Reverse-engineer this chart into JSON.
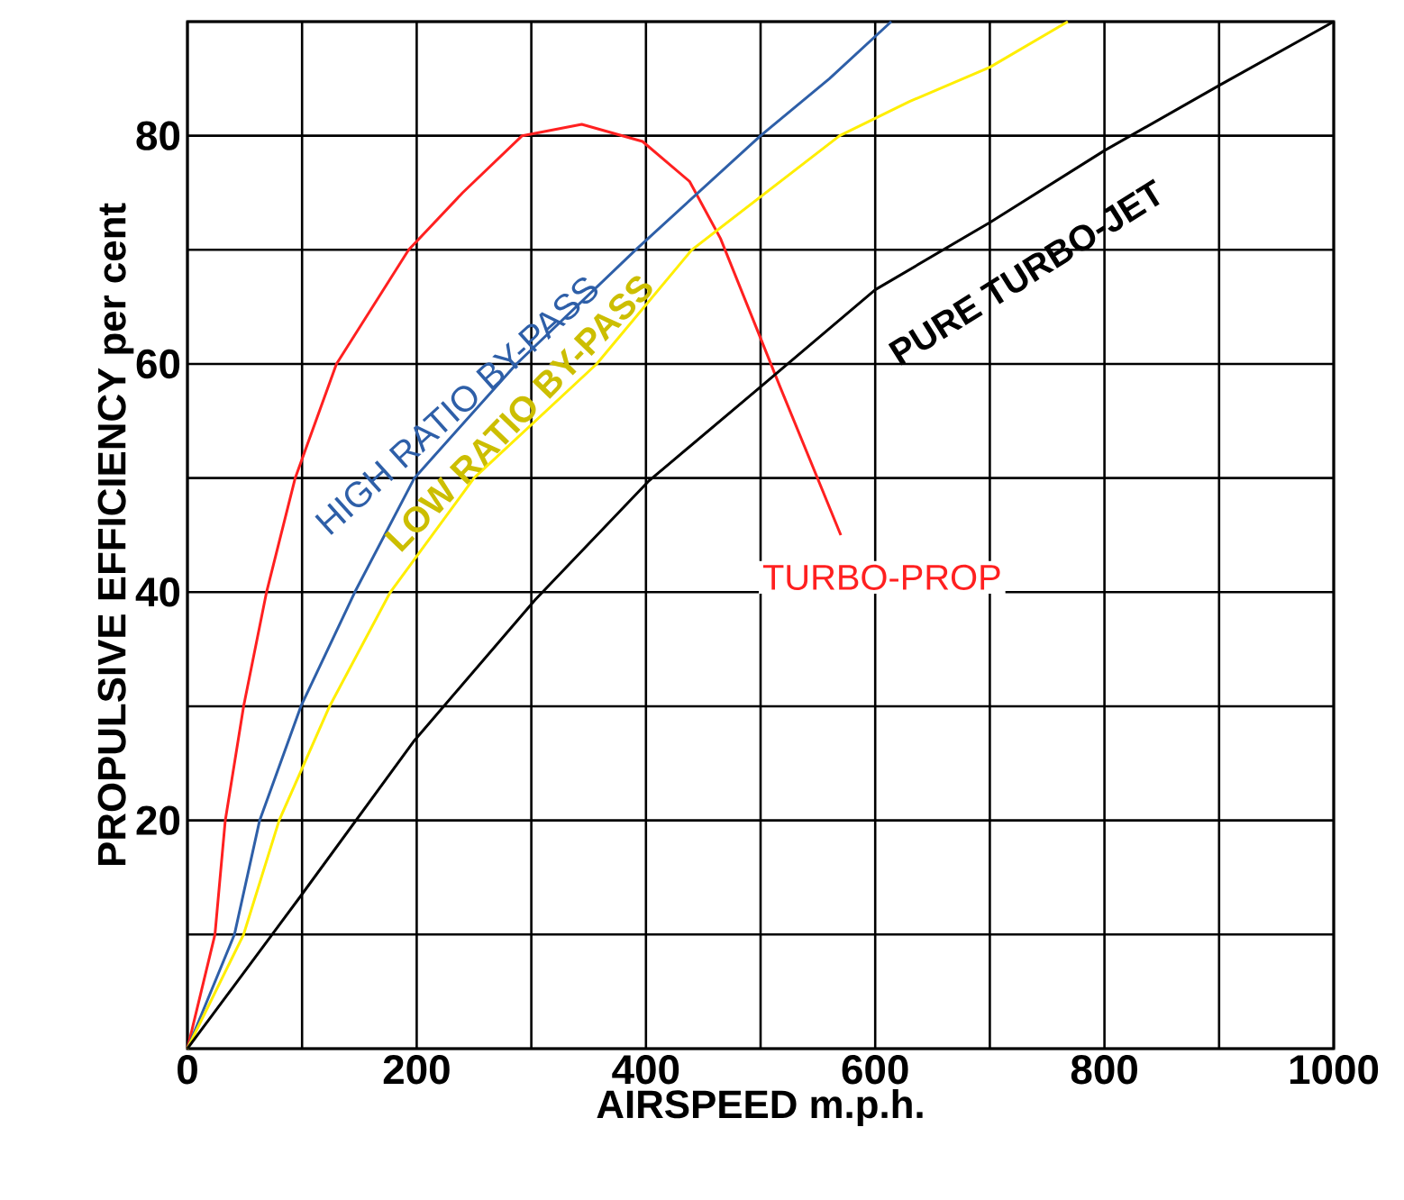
{
  "chart_data": {
    "type": "line",
    "xlabel": "AIRSPEED m.p.h.",
    "ylabel": "PROPULSIVE EFFICIENCY per cent",
    "xlim": [
      0,
      1000
    ],
    "ylim": [
      0,
      90
    ],
    "xticks": [
      0,
      {
        "value": 100,
        "label": null
      },
      200,
      {
        "value": 300,
        "label": null
      },
      400,
      {
        "value": 500,
        "label": null
      },
      600,
      {
        "value": 700,
        "label": null
      },
      800,
      {
        "value": 900,
        "label": null
      },
      1000
    ],
    "yticks": [
      {
        "value": 0,
        "label": null
      },
      {
        "value": 10,
        "label": null
      },
      20,
      {
        "value": 30,
        "label": null
      },
      40,
      {
        "value": 50,
        "label": null
      },
      60,
      {
        "value": 70,
        "label": null
      },
      80,
      {
        "value": 90,
        "label": null
      }
    ],
    "grid": true,
    "legend": false,
    "marker": "none",
    "line_style": "solid",
    "series": [
      {
        "name": "TURBO-PROP",
        "color": "#ff2020",
        "x": [
          0,
          24,
          33,
          49,
          69,
          94,
          130,
          193,
          240,
          292,
          344,
          397,
          438,
          465,
          501,
          517,
          570
        ],
        "values": [
          0,
          10,
          20,
          30,
          40,
          50,
          60,
          70,
          75,
          80,
          81,
          79.5,
          76,
          71,
          62,
          58,
          45
        ]
      },
      {
        "name": "HIGH RATIO BY-PASS",
        "color": "#2e5fa8",
        "x": [
          0,
          41,
          63,
          99,
          146,
          198,
          287,
          391,
          500,
          560,
          614
        ],
        "values": [
          0,
          10,
          20,
          30,
          40,
          50,
          60,
          70,
          80,
          85,
          90
        ]
      },
      {
        "name": "LOW RATIO BY-PASS",
        "color": "#ffee00",
        "x": [
          0,
          49,
          80,
          124,
          177,
          250,
          357,
          440,
          569,
          630,
          700,
          768
        ],
        "values": [
          0,
          10,
          20,
          30,
          40,
          50,
          60,
          70,
          80,
          83,
          86,
          90
        ]
      },
      {
        "name": "PURE TURBO-JET",
        "color": "#000000",
        "x": [
          0,
          99,
          198,
          303,
          402,
          500,
          600,
          700,
          800,
          900,
          1000
        ],
        "values": [
          0,
          13.4,
          27,
          39.3,
          49.7,
          58,
          66.5,
          72.4,
          78.7,
          84.4,
          90
        ]
      }
    ]
  }
}
